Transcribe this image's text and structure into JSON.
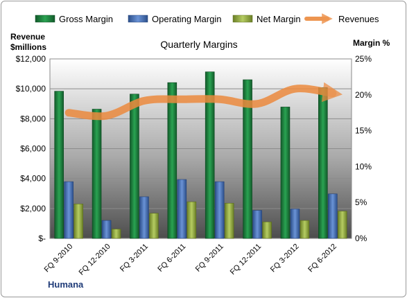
{
  "chart_data": {
    "type": "bar",
    "title": "Quarterly Margins",
    "company": "Humana",
    "left_axis_title_line1": "Revenue",
    "left_axis_title_line2": "$millions",
    "right_axis_title": "Margin %",
    "categories": [
      "FQ 9-2010",
      "FQ 12-2010",
      "FQ 3-2011",
      "FQ 6-2011",
      "FQ 9-2011",
      "FQ 12-2011",
      "FQ 3-2012",
      "FQ 6-2012"
    ],
    "left_axis": {
      "ylim": [
        0,
        12000
      ],
      "ticks": [
        0,
        2000,
        4000,
        6000,
        8000,
        10000,
        12000
      ],
      "tick_labels": [
        "$-",
        "$2,000",
        "$4,000",
        "$6,000",
        "$8,000",
        "$10,000",
        "$12,000"
      ]
    },
    "right_axis": {
      "ylim": [
        0,
        25
      ],
      "ticks": [
        0,
        5,
        10,
        15,
        20,
        25
      ],
      "tick_labels": [
        "0%",
        "5%",
        "10%",
        "15%",
        "20%",
        "25%"
      ]
    },
    "series": [
      {
        "name": "Gross Margin",
        "kind": "bar",
        "axis": "right",
        "color": "#1f7a3c",
        "values": [
          20.5,
          18.0,
          20.1,
          21.7,
          23.2,
          22.1,
          18.3,
          21.0
        ]
      },
      {
        "name": "Operating Margin",
        "kind": "bar",
        "axis": "right",
        "color": "#3f6db3",
        "values": [
          7.9,
          2.5,
          5.8,
          8.2,
          7.9,
          3.9,
          4.1,
          6.2
        ]
      },
      {
        "name": "Net Margin",
        "kind": "bar",
        "axis": "right",
        "color": "#8faa3c",
        "values": [
          4.8,
          1.3,
          3.5,
          5.1,
          4.9,
          2.3,
          2.5,
          3.8
        ]
      },
      {
        "name": "Revenues",
        "kind": "line",
        "axis": "left",
        "color": "#ec8a3e",
        "values": [
          8400,
          8200,
          9200,
          9300,
          9300,
          9000,
          10000,
          9700
        ]
      }
    ],
    "legend_position": "top",
    "grid": "horizontal"
  }
}
